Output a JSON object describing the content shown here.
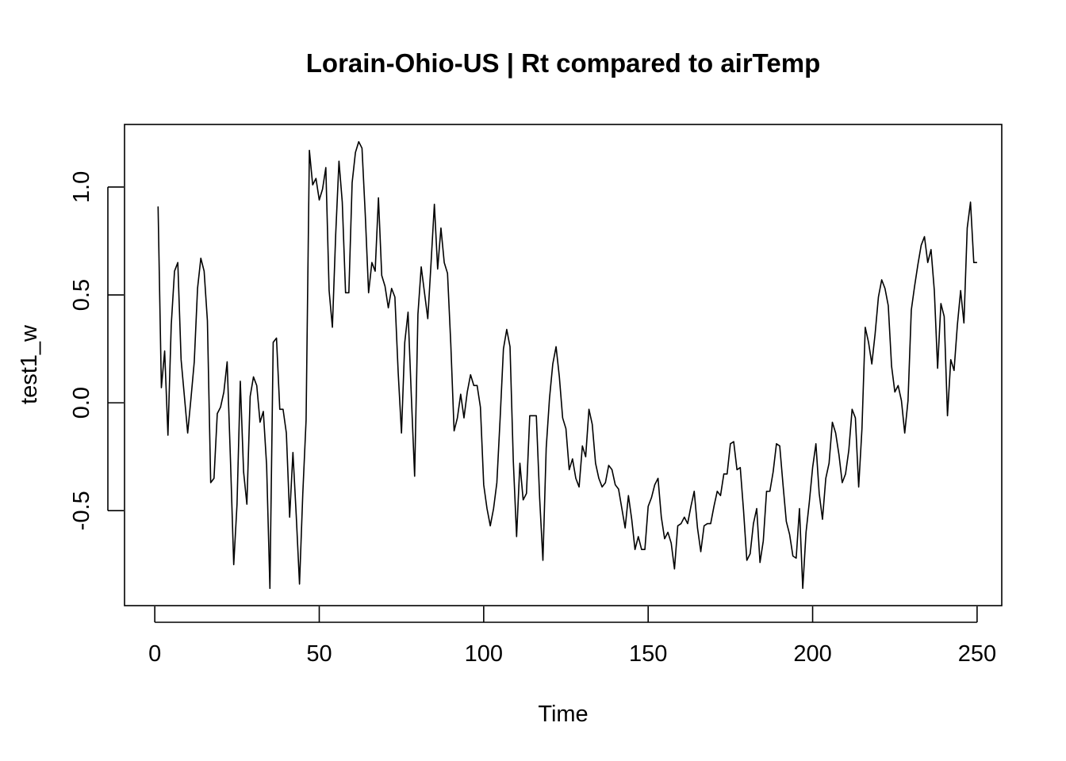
{
  "chart_data": {
    "type": "line",
    "title": "Lorain-Ohio-US | Rt compared to airTemp",
    "xlabel": "Time",
    "ylabel": "test1_w",
    "xlim": [
      -9.2,
      257.5
    ],
    "ylim": [
      -0.94,
      1.29
    ],
    "x_ticks": [
      0,
      50,
      100,
      150,
      200,
      250
    ],
    "x_tick_labels": [
      "0",
      "50",
      "100",
      "150",
      "200",
      "250"
    ],
    "y_ticks": [
      -0.5,
      0.0,
      0.5,
      1.0
    ],
    "y_tick_labels": [
      "-0.5",
      "0.0",
      "0.5",
      "1.0"
    ],
    "grid": false,
    "series": [
      {
        "x_start": 1,
        "x_step": 1,
        "values": [
          0.91,
          0.07,
          0.24,
          -0.15,
          0.36,
          0.61,
          0.65,
          0.2,
          0.03,
          -0.14,
          0.02,
          0.19,
          0.53,
          0.67,
          0.61,
          0.38,
          -0.37,
          -0.35,
          -0.05,
          -0.02,
          0.05,
          0.19,
          -0.26,
          -0.75,
          -0.47,
          0.1,
          -0.32,
          -0.47,
          0.03,
          0.12,
          0.08,
          -0.09,
          -0.04,
          -0.29,
          -0.86,
          0.28,
          0.3,
          -0.03,
          -0.03,
          -0.14,
          -0.53,
          -0.23,
          -0.52,
          -0.84,
          -0.42,
          -0.08,
          1.17,
          1.01,
          1.04,
          0.94,
          0.99,
          1.09,
          0.52,
          0.35,
          0.78,
          1.12,
          0.93,
          0.51,
          0.51,
          1.02,
          1.16,
          1.21,
          1.18,
          0.87,
          0.51,
          0.65,
          0.61,
          0.95,
          0.59,
          0.54,
          0.44,
          0.53,
          0.49,
          0.14,
          -0.14,
          0.28,
          0.42,
          0.03,
          -0.34,
          0.41,
          0.63,
          0.51,
          0.39,
          0.65,
          0.92,
          0.62,
          0.81,
          0.65,
          0.6,
          0.27,
          -0.13,
          -0.07,
          0.04,
          -0.07,
          0.05,
          0.13,
          0.08,
          0.08,
          -0.02,
          -0.38,
          -0.49,
          -0.57,
          -0.49,
          -0.37,
          -0.07,
          0.25,
          0.34,
          0.26,
          -0.27,
          -0.62,
          -0.28,
          -0.45,
          -0.42,
          -0.06,
          -0.06,
          -0.06,
          -0.44,
          -0.73,
          -0.21,
          0.02,
          0.18,
          0.26,
          0.12,
          -0.07,
          -0.12,
          -0.31,
          -0.26,
          -0.35,
          -0.39,
          -0.2,
          -0.25,
          -0.03,
          -0.1,
          -0.28,
          -0.35,
          -0.39,
          -0.37,
          -0.29,
          -0.31,
          -0.38,
          -0.4,
          -0.49,
          -0.58,
          -0.43,
          -0.54,
          -0.68,
          -0.62,
          -0.68,
          -0.68,
          -0.48,
          -0.44,
          -0.38,
          -0.35,
          -0.53,
          -0.63,
          -0.6,
          -0.65,
          -0.77,
          -0.57,
          -0.56,
          -0.53,
          -0.56,
          -0.48,
          -0.41,
          -0.58,
          -0.69,
          -0.57,
          -0.56,
          -0.56,
          -0.48,
          -0.41,
          -0.43,
          -0.33,
          -0.33,
          -0.19,
          -0.18,
          -0.31,
          -0.3,
          -0.5,
          -0.73,
          -0.7,
          -0.56,
          -0.49,
          -0.74,
          -0.64,
          -0.41,
          -0.41,
          -0.32,
          -0.19,
          -0.2,
          -0.38,
          -0.55,
          -0.61,
          -0.71,
          -0.72,
          -0.49,
          -0.86,
          -0.6,
          -0.46,
          -0.3,
          -0.19,
          -0.42,
          -0.54,
          -0.35,
          -0.28,
          -0.09,
          -0.14,
          -0.24,
          -0.37,
          -0.33,
          -0.22,
          -0.03,
          -0.07,
          -0.39,
          -0.12,
          0.35,
          0.28,
          0.18,
          0.32,
          0.49,
          0.57,
          0.53,
          0.45,
          0.17,
          0.05,
          0.08,
          0.01,
          -0.14,
          0.01,
          0.43,
          0.54,
          0.64,
          0.73,
          0.77,
          0.65,
          0.71,
          0.52,
          0.16,
          0.46,
          0.4,
          -0.06,
          0.2,
          0.15,
          0.36,
          0.52,
          0.37,
          0.81,
          0.93,
          0.65,
          0.65
        ]
      }
    ]
  }
}
